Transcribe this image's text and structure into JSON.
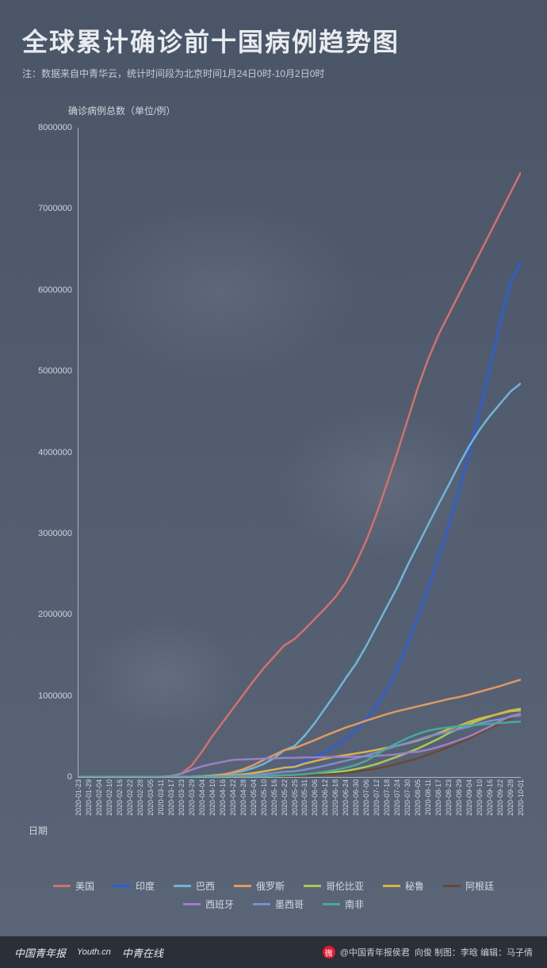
{
  "header": {
    "title": "全球累计确诊前十国病例趋势图",
    "subtitle": "注：数据来自中青华云，统计时间段为北京时间1月24日0时-10月2日0时"
  },
  "chart": {
    "type": "line",
    "y_axis_title": "确诊病例总数（单位/例）",
    "x_axis_title": "日期",
    "ylim": [
      0,
      8000000
    ],
    "yticks": [
      0,
      1000000,
      2000000,
      3000000,
      4000000,
      5000000,
      6000000,
      7000000,
      8000000
    ],
    "xticks": [
      "2020-01-23",
      "2020-01-29",
      "2020-02-04",
      "2020-02-10",
      "2020-02-16",
      "2020-02-22",
      "2020-02-28",
      "2020-03-05",
      "2020-03-11",
      "2020-03-17",
      "2020-03-23",
      "2020-03-29",
      "2020-04-04",
      "2020-04-10",
      "2020-04-16",
      "2020-04-22",
      "2020-04-28",
      "2020-05-04",
      "2020-05-10",
      "2020-05-16",
      "2020-05-22",
      "2020-05-25",
      "2020-05-31",
      "2020-06-06",
      "2020-06-12",
      "2020-06-18",
      "2020-06-24",
      "2020-06-30",
      "2020-07-06",
      "2020-07-12",
      "2020-07-18",
      "2020-07-24",
      "2020-07-30",
      "2020-08-05",
      "2020-08-11",
      "2020-08-17",
      "2020-08-23",
      "2020-08-29",
      "2020-09-04",
      "2020-09-10",
      "2020-09-16",
      "2020-09-22",
      "2020-09-28",
      "2020-10-01"
    ],
    "line_width": 2.5,
    "background_color": "transparent",
    "axis_color": "#aab2bc",
    "tick_color": "#cfd6dd",
    "tick_fontsize": 11,
    "series": [
      {
        "name": "美国",
        "color": "#d4706b",
        "data": [
          0,
          0,
          0,
          0,
          0,
          0,
          0,
          0,
          500,
          6000,
          40000,
          140000,
          310000,
          500000,
          670000,
          840000,
          1010000,
          1180000,
          1340000,
          1480000,
          1620000,
          1700000,
          1820000,
          1950000,
          2080000,
          2220000,
          2400000,
          2640000,
          2920000,
          3250000,
          3620000,
          4000000,
          4400000,
          4800000,
          5150000,
          5450000,
          5700000,
          5950000,
          6200000,
          6450000,
          6700000,
          6950000,
          7200000,
          7450000
        ]
      },
      {
        "name": "印度",
        "color": "#2a5eda",
        "data": [
          0,
          0,
          0,
          0,
          0,
          0,
          0,
          0,
          0,
          0,
          500,
          1000,
          3000,
          7000,
          13000,
          21000,
          31000,
          46000,
          67000,
          90000,
          125000,
          145000,
          190000,
          245000,
          310000,
          380000,
          470000,
          580000,
          720000,
          880000,
          1080000,
          1340000,
          1640000,
          1970000,
          2330000,
          2700000,
          3100000,
          3540000,
          4000000,
          4500000,
          5050000,
          5600000,
          6100000,
          6350000
        ]
      },
      {
        "name": "巴西",
        "color": "#6fb5d8",
        "data": [
          0,
          0,
          0,
          0,
          0,
          0,
          0,
          0,
          0,
          200,
          2000,
          4500,
          10000,
          20000,
          32000,
          46000,
          72000,
          110000,
          160000,
          230000,
          330000,
          380000,
          510000,
          670000,
          850000,
          1030000,
          1220000,
          1400000,
          1620000,
          1860000,
          2100000,
          2340000,
          2610000,
          2860000,
          3110000,
          3360000,
          3600000,
          3850000,
          4080000,
          4280000,
          4450000,
          4600000,
          4750000,
          4850000
        ]
      },
      {
        "name": "俄罗斯",
        "color": "#e09a5f",
        "data": [
          0,
          0,
          0,
          0,
          0,
          0,
          0,
          0,
          0,
          100,
          500,
          1800,
          4700,
          12000,
          28000,
          58000,
          95000,
          145000,
          210000,
          270000,
          330000,
          355000,
          405000,
          455000,
          510000,
          560000,
          610000,
          650000,
          695000,
          735000,
          775000,
          810000,
          840000,
          870000,
          900000,
          930000,
          960000,
          985000,
          1015000,
          1050000,
          1085000,
          1120000,
          1160000,
          1200000
        ]
      },
      {
        "name": "哥伦比亚",
        "color": "#a8c956",
        "data": [
          0,
          0,
          0,
          0,
          0,
          0,
          0,
          0,
          0,
          0,
          300,
          700,
          1400,
          2700,
          3400,
          4500,
          6000,
          8000,
          11000,
          15000,
          20000,
          22000,
          30000,
          40000,
          48000,
          60000,
          75000,
          98000,
          125000,
          160000,
          205000,
          250000,
          300000,
          350000,
          410000,
          470000,
          540000,
          600000,
          650000,
          700000,
          745000,
          785000,
          820000,
          840000
        ]
      },
      {
        "name": "秘鲁",
        "color": "#d8b448",
        "data": [
          0,
          0,
          0,
          0,
          0,
          0,
          0,
          0,
          0,
          0,
          400,
          1000,
          2000,
          6000,
          13000,
          20000,
          32000,
          48000,
          68000,
          90000,
          115000,
          125000,
          165000,
          195000,
          225000,
          250000,
          270000,
          290000,
          310000,
          335000,
          360000,
          385000,
          415000,
          450000,
          490000,
          540000,
          590000,
          630000,
          680000,
          720000,
          750000,
          780000,
          810000,
          820000
        ]
      },
      {
        "name": "阿根廷",
        "color": "#6b4832",
        "data": [
          0,
          0,
          0,
          0,
          0,
          0,
          0,
          0,
          0,
          0,
          300,
          800,
          1500,
          2000,
          2700,
          3400,
          4100,
          5000,
          6000,
          8000,
          11000,
          13000,
          17000,
          23000,
          30000,
          38000,
          50000,
          65000,
          85000,
          105000,
          130000,
          160000,
          195000,
          230000,
          275000,
          320000,
          370000,
          420000,
          475000,
          540000,
          600000,
          660000,
          720000,
          770000
        ]
      },
      {
        "name": "西班牙",
        "color": "#9d7fc4",
        "data": [
          0,
          0,
          0,
          0,
          0,
          0,
          0,
          200,
          2000,
          12000,
          40000,
          90000,
          130000,
          160000,
          185000,
          210000,
          215000,
          220000,
          225000,
          230000,
          235000,
          236000,
          240000,
          242000,
          244000,
          246000,
          248000,
          250000,
          253000,
          260000,
          268000,
          278000,
          300000,
          310000,
          335000,
          370000,
          410000,
          455000,
          500000,
          560000,
          620000,
          690000,
          750000,
          780000
        ]
      },
      {
        "name": "墨西哥",
        "color": "#7a8fc9",
        "data": [
          0,
          0,
          0,
          0,
          0,
          0,
          0,
          0,
          0,
          100,
          400,
          1000,
          2000,
          4000,
          7000,
          11000,
          17000,
          25000,
          35000,
          48000,
          63000,
          70000,
          90000,
          113000,
          140000,
          170000,
          200000,
          230000,
          265000,
          305000,
          345000,
          385000,
          420000,
          460000,
          500000,
          530000,
          560000,
          590000,
          620000,
          660000,
          690000,
          710000,
          740000,
          760000
        ]
      },
      {
        "name": "南非",
        "color": "#4aa89a",
        "data": [
          0,
          0,
          0,
          0,
          0,
          0,
          0,
          0,
          0,
          100,
          400,
          1300,
          1700,
          2100,
          2800,
          3800,
          5000,
          7500,
          10500,
          15000,
          21000,
          24000,
          33000,
          48000,
          65000,
          87000,
          115000,
          150000,
          200000,
          275000,
          355000,
          420000,
          480000,
          530000,
          570000,
          595000,
          610000,
          625000,
          635000,
          645000,
          655000,
          665000,
          675000,
          680000
        ]
      }
    ]
  },
  "legend_layout": {
    "rows": 2,
    "cols": 5
  },
  "footer": {
    "logos": [
      "中国青年报",
      "Youth.cn",
      "中青在线"
    ],
    "weibo_handle": "@中国青年报侯君",
    "credits": "向俊 制图：李晗 编辑：马子倩"
  }
}
